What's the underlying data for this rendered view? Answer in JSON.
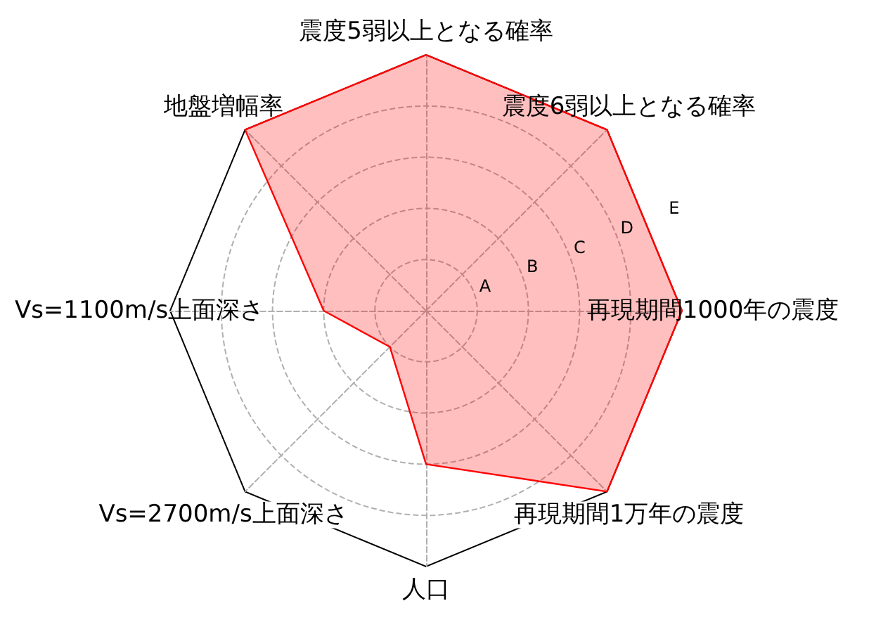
{
  "chart_data": {
    "type": "radar",
    "categories": [
      "震度5弱以上となる確率",
      "震度6弱以上となる確率",
      "再現期間1000年の震度",
      "再現期間1万年の震度",
      "人口",
      "Vs=2700m/s上面深さ",
      "Vs=1100m/s上面深さ",
      "地盤増幅率"
    ],
    "series": [
      {
        "color": "#ff0000",
        "values": [
          5,
          5,
          5,
          5,
          3,
          1,
          2,
          5
        ]
      }
    ],
    "ylim": [
      0,
      5
    ],
    "yticks": [
      {
        "value": 1,
        "label": "A"
      },
      {
        "value": 2,
        "label": "B"
      },
      {
        "value": 3,
        "label": "C"
      },
      {
        "value": 4,
        "label": "D"
      },
      {
        "value": 5,
        "label": "E"
      }
    ],
    "grid": true
  }
}
